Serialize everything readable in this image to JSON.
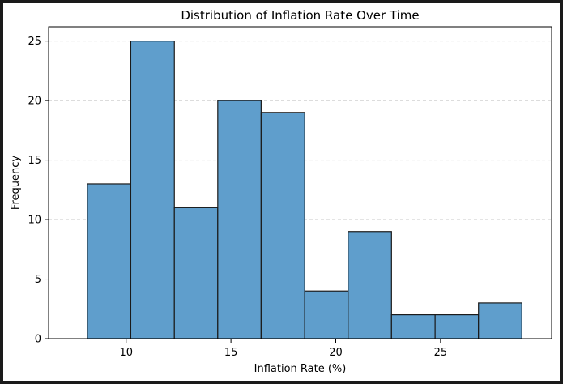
{
  "chart_data": {
    "type": "bar",
    "title": "Distribution of Inflation Rate Over Time",
    "xlabel": "Inflation Rate (%)",
    "ylabel": "Frequency",
    "bin_edges": [
      8.15,
      10.22,
      12.3,
      14.37,
      16.44,
      18.52,
      20.59,
      22.66,
      24.74,
      26.81,
      28.88
    ],
    "values": [
      13,
      25,
      11,
      20,
      19,
      4,
      9,
      2,
      2,
      3
    ],
    "xlim": [
      6.3,
      30.3
    ],
    "ylim": [
      0,
      26.2
    ],
    "xticks": [
      10,
      15,
      20,
      25
    ],
    "yticks": [
      0,
      5,
      10,
      15,
      20,
      25
    ],
    "grid": "y-dashed",
    "bar_color": "#5f9ecc",
    "edge_color": "#1a1a1a"
  }
}
